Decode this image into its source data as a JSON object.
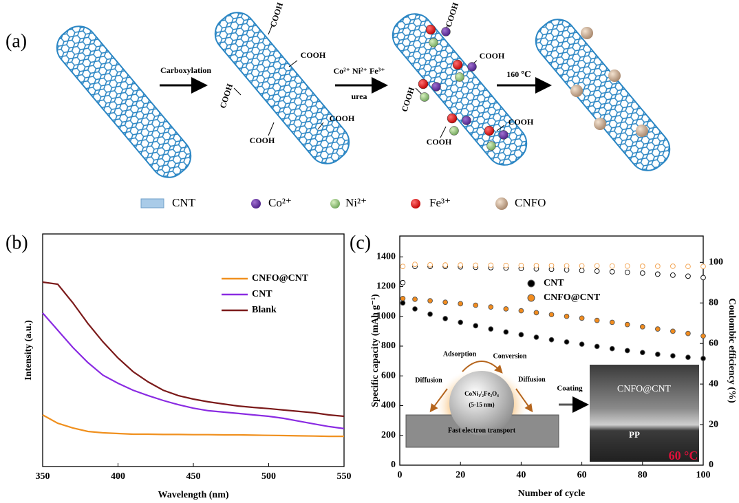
{
  "diagram": {
    "panel_label": "(a)",
    "steps": [
      "Carboxylation",
      "Co²⁺ Ni²⁺ Fe³⁺",
      "urea",
      "160 ℃"
    ],
    "cooh": [
      "COOH",
      "COOH",
      "COOH",
      "COOH",
      "COOH",
      "COOH",
      "COOH",
      "COOH",
      "COOH",
      "COOH"
    ],
    "legend": [
      "CNT",
      "Co²⁺",
      "Ni²⁺",
      "Fe³⁺",
      "CNFO"
    ]
  },
  "chart_data": [
    {
      "type": "line",
      "panel_label": "(b)",
      "x_label": "Wavelength (nm)",
      "y_label": "Intensity (a.u.)",
      "x": [
        350,
        360,
        370,
        380,
        390,
        400,
        410,
        420,
        430,
        440,
        450,
        460,
        470,
        480,
        490,
        500,
        510,
        520,
        530,
        540,
        550
      ],
      "xlim": [
        350,
        550
      ],
      "xticks": [
        350,
        400,
        450,
        500,
        550
      ],
      "ylim": [
        0,
        100
      ],
      "series": [
        {
          "name": "CNFO@CNT",
          "color": "#f0901e",
          "values": [
            22.2,
            18.6,
            16.6,
            15.1,
            14.5,
            14.2,
            13.9,
            13.9,
            13.8,
            13.8,
            13.7,
            13.7,
            13.6,
            13.6,
            13.5,
            13.4,
            13.3,
            13.2,
            13.1,
            13.0,
            13.0
          ]
        },
        {
          "name": "CNT",
          "color": "#8a2be2",
          "values": [
            66.0,
            58.6,
            51.2,
            44.7,
            39.3,
            35.8,
            32.8,
            30.5,
            28.4,
            26.6,
            25.1,
            24.0,
            23.4,
            22.8,
            22.2,
            21.6,
            20.7,
            19.5,
            18.3,
            17.2,
            16.3
          ]
        },
        {
          "name": "Blank",
          "color": "#7b1a1a",
          "values": [
            79.3,
            78.4,
            70.4,
            61.5,
            53.6,
            46.7,
            40.8,
            36.4,
            32.8,
            30.5,
            29.0,
            27.8,
            26.9,
            26.0,
            25.4,
            24.9,
            24.3,
            23.7,
            23.1,
            22.2,
            21.6
          ]
        }
      ]
    },
    {
      "type": "scatter",
      "panel_label": "(c)",
      "x_label": "Number of cycle",
      "y_label": "Specific capacity (mAh g⁻¹)",
      "y2_label": "Coulombic efficiency (%)",
      "x": [
        1,
        5,
        10,
        15,
        20,
        25,
        30,
        35,
        40,
        45,
        50,
        55,
        60,
        65,
        70,
        75,
        80,
        85,
        90,
        95,
        100
      ],
      "xlim": [
        0,
        100
      ],
      "xticks": [
        0,
        20,
        40,
        60,
        80,
        100
      ],
      "ylim": [
        0,
        1540
      ],
      "yticks": [
        0,
        200,
        400,
        600,
        800,
        1000,
        1200,
        1400
      ],
      "y2lim": [
        0,
        113
      ],
      "y2ticks": [
        0,
        20,
        40,
        60,
        80,
        100
      ],
      "series": [
        {
          "name": "CNT",
          "color": "#000000",
          "marker": "filled",
          "values": [
            1090,
            1050,
            1015,
            985,
            960,
            937,
            915,
            895,
            877,
            860,
            843,
            828,
            813,
            798,
            783,
            770,
            757,
            745,
            735,
            725,
            717
          ]
        },
        {
          "name": "CNFO@CNT",
          "color": "#f28c1e",
          "marker": "filled",
          "values": [
            1120,
            1115,
            1105,
            1095,
            1085,
            1075,
            1063,
            1050,
            1038,
            1025,
            1012,
            1000,
            988,
            973,
            960,
            945,
            930,
            915,
            900,
            885,
            868
          ]
        },
        {
          "color": "#000000",
          "marker": "open",
          "axis": "y2",
          "values": [
            90,
            98,
            98,
            98,
            97.8,
            97.6,
            97.4,
            97.2,
            97,
            96.8,
            96.6,
            96.3,
            96,
            95.7,
            95.4,
            95.1,
            94.7,
            94.2,
            93.7,
            93.2,
            92.5
          ]
        },
        {
          "color": "#f2a04a",
          "marker": "open",
          "axis": "y2",
          "values": [
            98,
            99,
            98.8,
            98.7,
            98.7,
            98.6,
            98.6,
            98.5,
            98.5,
            98.4,
            98.4,
            98.3,
            98.3,
            98.3,
            98.2,
            98.2,
            98.1,
            98.1,
            98.1,
            98.0,
            98.0
          ]
        }
      ],
      "inset": {
        "adsorption": "Adsorption",
        "conversion": "Conversion",
        "diffusion_left": "Diffusion",
        "diffusion_right": "Diffusion",
        "particle": "CoNi₁/₂Fe₂O₄",
        "size": "(5-15 nm)",
        "substrate": "Fast electron transport",
        "coating": "Coating",
        "sem_top": "CNFO@CNT",
        "sem_bottom": "PP",
        "temperature": "60 °C"
      }
    }
  ]
}
